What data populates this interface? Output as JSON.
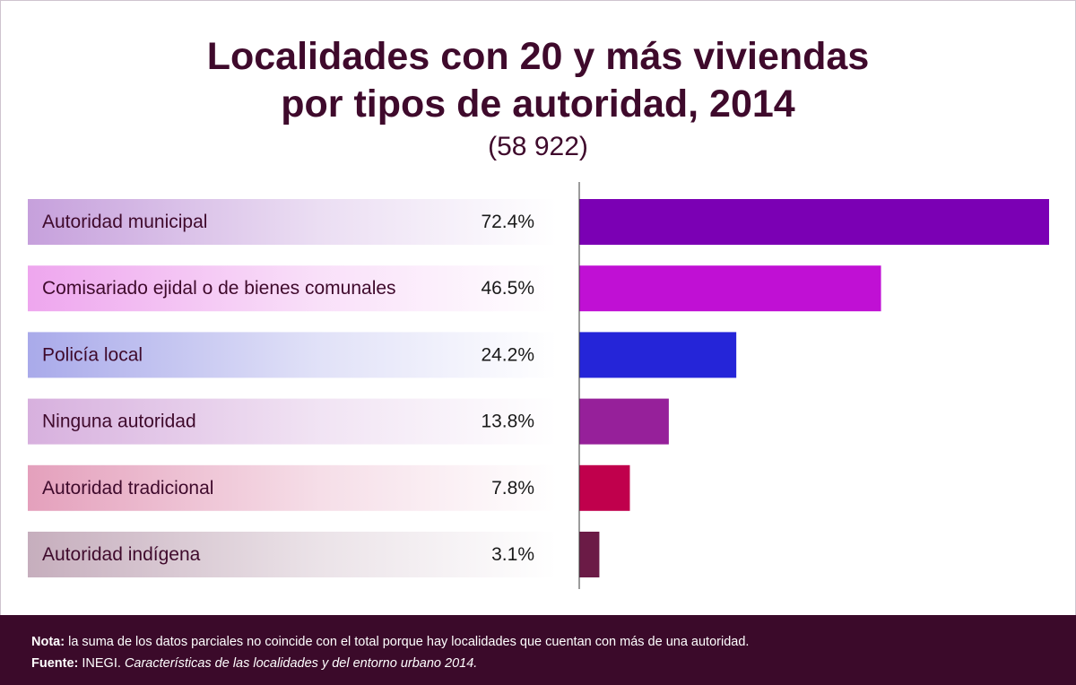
{
  "chart_data": {
    "type": "bar",
    "orientation": "horizontal",
    "title_line1": "Localidades con 20 y más viviendas",
    "title_line2": "por tipos de autoridad, 2014",
    "subtitle": "(58 922)",
    "categories": [
      "Autoridad municipal",
      "Comisariado ejidal o de bienes comunales",
      "Policía local",
      "Ninguna autoridad",
      "Autoridad tradicional",
      "Autoridad indígena"
    ],
    "values": [
      72.4,
      46.5,
      24.2,
      13.8,
      7.8,
      3.1
    ],
    "value_labels": [
      "72.4%",
      "46.5%",
      "24.2%",
      "13.8%",
      "7.8%",
      "3.1%"
    ],
    "unit": "%",
    "colors": [
      "#7b00b4",
      "#c010d4",
      "#2525d8",
      "#96209a",
      "#c0004c",
      "#6b1b46"
    ],
    "label_tints": [
      "#c6a0dc",
      "#eea6ee",
      "#a9aaea",
      "#d7b0de",
      "#e4a0bc",
      "#c6aebd"
    ],
    "xlim": [
      0,
      72.4
    ],
    "grid": false,
    "legend": "none"
  },
  "footer": {
    "nota_label": "Nota:",
    "nota_text": " la suma de los datos parciales no coincide con el total porque hay localidades que cuentan con más de una autoridad.",
    "fuente_label": "Fuente:",
    "fuente_source": " INEGI. ",
    "fuente_title": "Características de las localidades y del entorno urbano 2014."
  }
}
